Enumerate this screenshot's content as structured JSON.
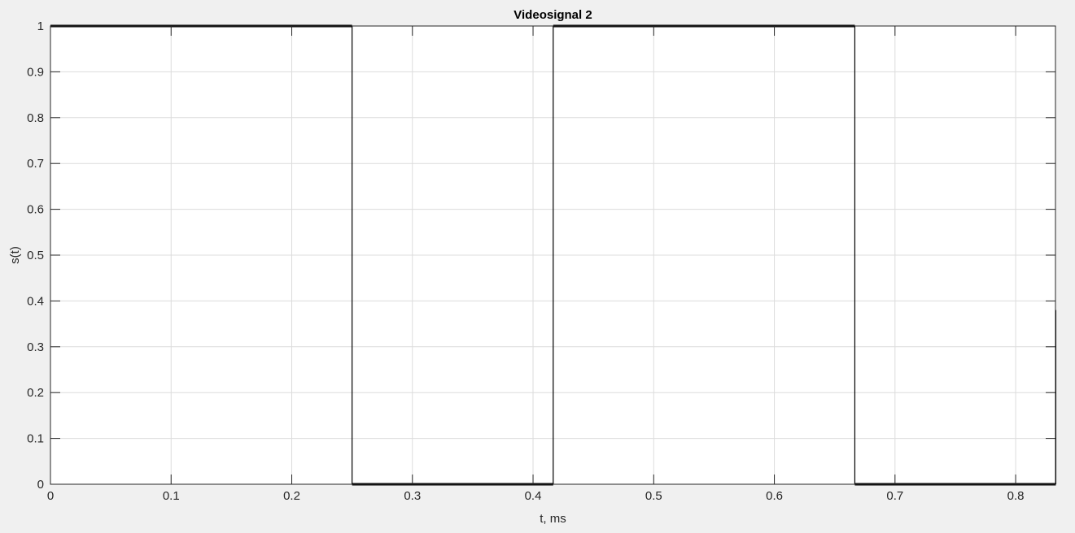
{
  "chart_data": {
    "type": "line",
    "title": "Videosignal 2",
    "xlabel": "t, ms",
    "ylabel": "s(t)",
    "xlim": [
      0,
      0.833
    ],
    "ylim": [
      0,
      1
    ],
    "xticks": [
      0,
      0.1,
      0.2,
      0.3,
      0.4,
      0.5,
      0.6,
      0.7,
      0.8
    ],
    "yticks": [
      0,
      0.1,
      0.2,
      0.3,
      0.4,
      0.5,
      0.6,
      0.7,
      0.8,
      0.9,
      1
    ],
    "xtick_labels": [
      "0",
      "0.1",
      "0.2",
      "0.3",
      "0.4",
      "0.5",
      "0.6",
      "0.7",
      "0.8"
    ],
    "ytick_labels": [
      "0",
      "0.1",
      "0.2",
      "0.3",
      "0.4",
      "0.5",
      "0.6",
      "0.7",
      "0.8",
      "0.9",
      "1"
    ],
    "grid": true,
    "colors": {
      "line": "#000000",
      "grid": "#dcdcdc",
      "axes_bg": "#ffffff",
      "figure_bg": "#f0f0f0"
    },
    "series": [
      {
        "x": [
          0,
          0.25,
          0.25,
          0.4167,
          0.4167,
          0.6667,
          0.6667,
          0.8333,
          0.8333
        ],
        "y": [
          1,
          1,
          0,
          0,
          1,
          1,
          0,
          0,
          0.38
        ]
      }
    ]
  }
}
